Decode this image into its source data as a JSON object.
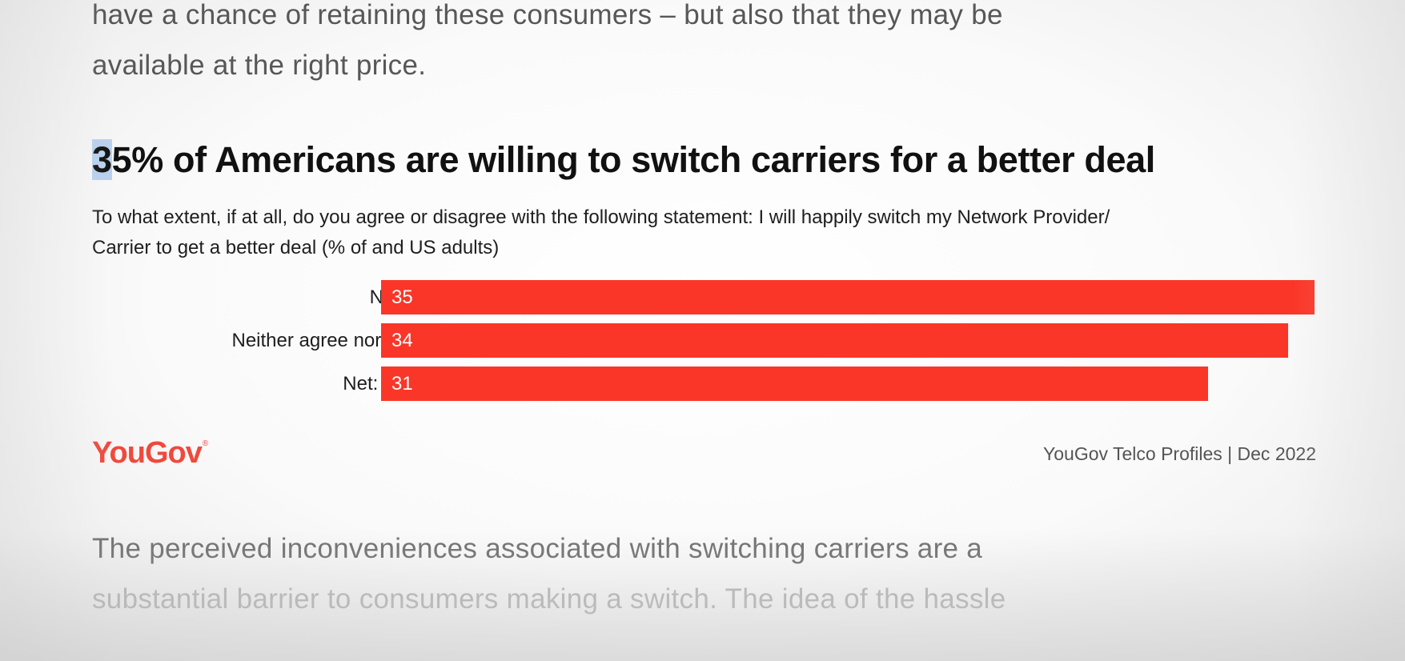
{
  "article": {
    "intro_lines": [
      "have a chance of retaining these consumers – but also that they may be",
      "available at the right price."
    ],
    "headline_selected": "3",
    "headline_rest": "5% of Americans are willing to switch carriers for a better deal",
    "question_lines": [
      "To what extent, if at all, do you agree or disagree with the following statement: I will happily switch my Network Provider/",
      "Carrier to get a better deal (% of and US adults)"
    ],
    "logo_text": "YouGov",
    "logo_mark": "®",
    "source": "YouGov Telco Profiles | Dec 2022",
    "outro_lines": [
      "The perceived inconveniences associated with switching carriers are a",
      "substantial barrier to consumers making a switch. The idea of the hassle"
    ]
  },
  "chart_data": {
    "type": "bar",
    "orientation": "horizontal",
    "categories": [
      "Net: Agree",
      "Neither agree nor disagree",
      "Net: Disagree"
    ],
    "values": [
      35,
      34,
      31
    ],
    "data_labels": [
      "35",
      "34",
      "31"
    ],
    "bar_color": "#fa3628",
    "xlim": [
      0,
      35
    ]
  },
  "colors": {
    "accent": "#fa3628",
    "logo": "#f0493c",
    "selection": "#b9d1ee"
  }
}
